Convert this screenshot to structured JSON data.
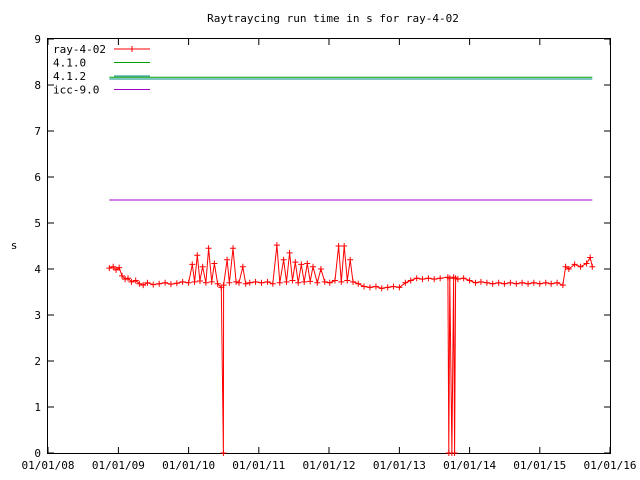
{
  "chart_data": {
    "type": "line",
    "title": "Raytraycing run time in s for ray-4-02",
    "xlabel": "",
    "ylabel": "s",
    "x_ticks": [
      "01/01/08",
      "01/01/09",
      "01/01/10",
      "01/01/11",
      "01/01/12",
      "01/01/13",
      "01/01/14",
      "01/01/15",
      "01/01/16"
    ],
    "xlim": [
      "2008-01-01",
      "2016-01-01"
    ],
    "ylim": [
      0,
      9
    ],
    "y_ticks": [
      "0",
      "1",
      "2",
      "3",
      "4",
      "5",
      "6",
      "7",
      "8",
      "9"
    ],
    "grid": false,
    "legend_position": "top-left",
    "series": [
      {
        "name": "ray-4-02",
        "color": "#ff0000",
        "style": "linespoints",
        "points": [
          [
            "2008-11-15",
            4.02
          ],
          [
            "2008-12-05",
            4.05
          ],
          [
            "2008-12-20",
            3.98
          ],
          [
            "2009-01-05",
            4.03
          ],
          [
            "2009-01-20",
            3.85
          ],
          [
            "2009-02-05",
            3.78
          ],
          [
            "2009-02-20",
            3.8
          ],
          [
            "2009-03-10",
            3.72
          ],
          [
            "2009-04-01",
            3.75
          ],
          [
            "2009-04-20",
            3.68
          ],
          [
            "2009-05-10",
            3.65
          ],
          [
            "2009-06-01",
            3.7
          ],
          [
            "2009-07-01",
            3.66
          ],
          [
            "2009-08-01",
            3.68
          ],
          [
            "2009-09-01",
            3.7
          ],
          [
            "2009-10-01",
            3.67
          ],
          [
            "2009-11-01",
            3.69
          ],
          [
            "2009-12-01",
            3.72
          ],
          [
            "2010-01-01",
            3.7
          ],
          [
            "2010-01-20",
            4.1
          ],
          [
            "2010-02-01",
            3.72
          ],
          [
            "2010-02-15",
            4.3
          ],
          [
            "2010-03-01",
            3.74
          ],
          [
            "2010-03-15",
            4.05
          ],
          [
            "2010-04-01",
            3.7
          ],
          [
            "2010-04-15",
            4.45
          ],
          [
            "2010-05-01",
            3.72
          ],
          [
            "2010-05-15",
            4.12
          ],
          [
            "2010-06-01",
            3.68
          ],
          [
            "2010-06-20",
            3.6
          ],
          [
            "2010-07-01",
            0
          ],
          [
            "2010-07-02",
            3.65
          ],
          [
            "2010-07-20",
            4.2
          ],
          [
            "2010-08-01",
            3.7
          ],
          [
            "2010-08-20",
            4.45
          ],
          [
            "2010-09-05",
            3.72
          ],
          [
            "2010-09-20",
            3.7
          ],
          [
            "2010-10-10",
            4.05
          ],
          [
            "2010-10-25",
            3.68
          ],
          [
            "2010-11-15",
            3.7
          ],
          [
            "2010-12-15",
            3.72
          ],
          [
            "2011-01-15",
            3.7
          ],
          [
            "2011-02-15",
            3.72
          ],
          [
            "2011-03-15",
            3.68
          ],
          [
            "2011-04-05",
            4.52
          ],
          [
            "2011-04-20",
            3.7
          ],
          [
            "2011-05-10",
            4.2
          ],
          [
            "2011-05-25",
            3.72
          ],
          [
            "2011-06-10",
            4.35
          ],
          [
            "2011-06-25",
            3.75
          ],
          [
            "2011-07-10",
            4.15
          ],
          [
            "2011-07-25",
            3.7
          ],
          [
            "2011-08-10",
            4.1
          ],
          [
            "2011-08-25",
            3.72
          ],
          [
            "2011-09-10",
            4.12
          ],
          [
            "2011-09-25",
            3.73
          ],
          [
            "2011-10-10",
            4.05
          ],
          [
            "2011-11-01",
            3.7
          ],
          [
            "2011-11-20",
            4.0
          ],
          [
            "2011-12-10",
            3.72
          ],
          [
            "2012-01-05",
            3.7
          ],
          [
            "2012-02-01",
            3.75
          ],
          [
            "2012-02-20",
            4.5
          ],
          [
            "2012-03-05",
            3.72
          ],
          [
            "2012-03-20",
            4.5
          ],
          [
            "2012-04-05",
            3.75
          ],
          [
            "2012-04-20",
            4.2
          ],
          [
            "2012-05-05",
            3.72
          ],
          [
            "2012-06-01",
            3.68
          ],
          [
            "2012-07-01",
            3.62
          ],
          [
            "2012-08-01",
            3.6
          ],
          [
            "2012-09-01",
            3.62
          ],
          [
            "2012-10-01",
            3.58
          ],
          [
            "2012-11-01",
            3.6
          ],
          [
            "2012-12-01",
            3.62
          ],
          [
            "2013-01-01",
            3.6
          ],
          [
            "2013-02-01",
            3.7
          ],
          [
            "2013-03-01",
            3.75
          ],
          [
            "2013-04-01",
            3.8
          ],
          [
            "2013-05-01",
            3.78
          ],
          [
            "2013-06-01",
            3.8
          ],
          [
            "2013-07-01",
            3.78
          ],
          [
            "2013-08-01",
            3.8
          ],
          [
            "2013-09-10",
            3.82
          ],
          [
            "2013-09-15",
            0
          ],
          [
            "2013-09-20",
            3.8
          ],
          [
            "2013-10-01",
            0
          ],
          [
            "2013-10-10",
            3.82
          ],
          [
            "2013-10-15",
            0
          ],
          [
            "2013-10-20",
            3.8
          ],
          [
            "2013-11-01",
            3.78
          ],
          [
            "2013-12-01",
            3.8
          ],
          [
            "2014-01-01",
            3.75
          ],
          [
            "2014-02-01",
            3.7
          ],
          [
            "2014-03-01",
            3.72
          ],
          [
            "2014-04-01",
            3.7
          ],
          [
            "2014-05-01",
            3.68
          ],
          [
            "2014-06-01",
            3.7
          ],
          [
            "2014-07-01",
            3.68
          ],
          [
            "2014-08-01",
            3.7
          ],
          [
            "2014-09-01",
            3.68
          ],
          [
            "2014-10-01",
            3.7
          ],
          [
            "2014-11-01",
            3.68
          ],
          [
            "2014-12-01",
            3.7
          ],
          [
            "2015-01-01",
            3.68
          ],
          [
            "2015-02-01",
            3.7
          ],
          [
            "2015-03-01",
            3.68
          ],
          [
            "2015-04-01",
            3.7
          ],
          [
            "2015-05-01",
            3.65
          ],
          [
            "2015-05-15",
            4.05
          ],
          [
            "2015-06-01",
            4.0
          ],
          [
            "2015-07-01",
            4.1
          ],
          [
            "2015-08-01",
            4.05
          ],
          [
            "2015-09-01",
            4.12
          ],
          [
            "2015-09-20",
            4.25
          ],
          [
            "2015-10-01",
            4.05
          ]
        ]
      },
      {
        "name": "4.1.0",
        "color": "#00a000",
        "style": "line",
        "points": [
          [
            "2008-11-15",
            8.17
          ],
          [
            "2015-10-01",
            8.17
          ]
        ]
      },
      {
        "name": "4.1.2",
        "color": "#008a8a",
        "style": "line",
        "points": [
          [
            "2008-11-15",
            8.13
          ],
          [
            "2015-10-01",
            8.13
          ]
        ]
      },
      {
        "name": "icc-9.0",
        "color": "#a000c8",
        "style": "line",
        "points": [
          [
            "2008-11-15",
            5.5
          ],
          [
            "2015-10-01",
            5.5
          ]
        ]
      }
    ]
  }
}
